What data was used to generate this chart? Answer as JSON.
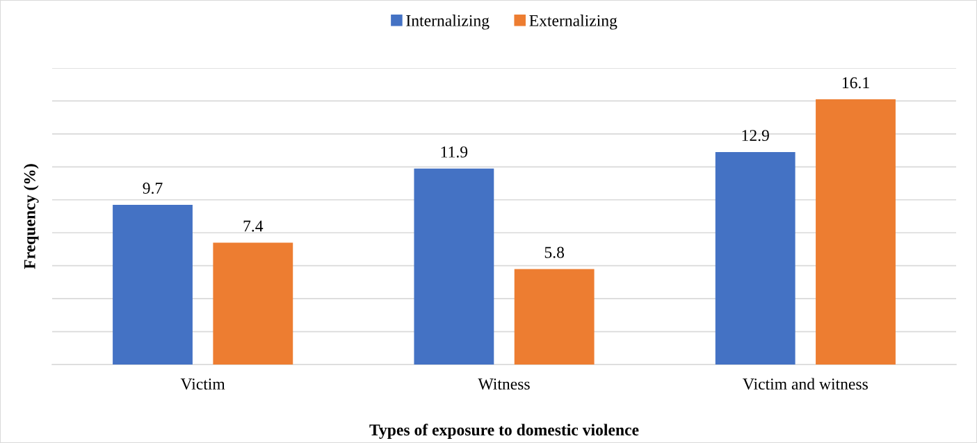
{
  "chart_data": {
    "type": "bar",
    "xlabel": "Types of exposure to domestic violence",
    "ylabel": "Frequency (%)",
    "categories": [
      "Victim",
      "Witness",
      "Victim and witness"
    ],
    "series": [
      {
        "name": "Internalizing",
        "color": "#4472c4",
        "values": [
          9.7,
          11.9,
          12.9
        ]
      },
      {
        "name": "Externalizing",
        "color": "#ed7d31",
        "values": [
          7.4,
          5.8,
          16.1
        ]
      }
    ],
    "ylim": [
      0,
      18
    ],
    "yticks": [
      {
        "value": 0,
        "label": null
      },
      {
        "value": 2,
        "label": null
      },
      {
        "value": 4,
        "label": null
      },
      {
        "value": 6,
        "label": null
      },
      {
        "value": 8,
        "label": null
      },
      {
        "value": 10,
        "label": null
      },
      {
        "value": 12,
        "label": null
      },
      {
        "value": 14,
        "label": null
      },
      {
        "value": 16,
        "label": null
      },
      {
        "value": 18,
        "label": null
      }
    ],
    "tick_labels": "x",
    "grid": "y",
    "legend": "top",
    "data_labels": true
  }
}
